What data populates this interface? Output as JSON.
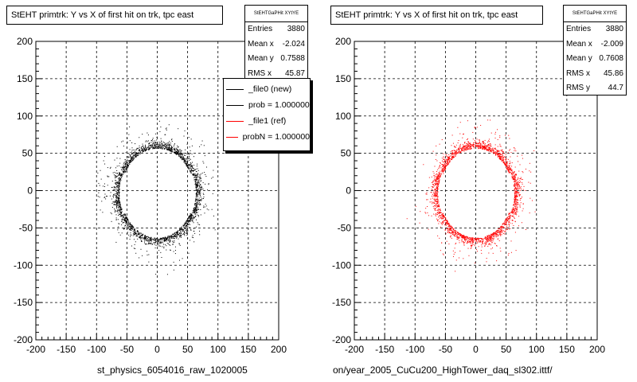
{
  "panels": [
    {
      "title": "StEHT primtrk: Y vs X of first hit on trk, tpc east",
      "stats": {
        "header": "StEHTGaPHit XYtYE",
        "rows": [
          {
            "label": "Entries",
            "value": "3880"
          },
          {
            "label": "Mean x",
            "value": "-2.024"
          },
          {
            "label": "Mean y",
            "value": "0.7588"
          },
          {
            "label": "RMS x",
            "value": "45.87"
          }
        ]
      },
      "legend": [
        {
          "label": "_file0 (new)",
          "color": "#000000"
        },
        {
          "label": "prob = 1.000000",
          "color": "#000000"
        },
        {
          "label": "_file1 (ref)",
          "color": "#ff0000"
        },
        {
          "label": "probN = 1.000000",
          "color": "#ff0000"
        }
      ],
      "file_label": "st_physics_6054016_raw_1020005",
      "marker_color": "#000000"
    },
    {
      "title": "StEHT primtrk: Y vs X of first hit on trk, tpc east",
      "stats": {
        "header": "StEHTGaPHit XYtYE",
        "rows": [
          {
            "label": "Entries",
            "value": "3880"
          },
          {
            "label": "Mean x",
            "value": "-2.009"
          },
          {
            "label": "Mean y",
            "value": "0.7608"
          },
          {
            "label": "RMS x",
            "value": "45.86"
          },
          {
            "label": "RMS y",
            "value": "44.7"
          }
        ]
      },
      "file_label": "on/year_2005_CuCu200_HighTower_daq_sl302.ittf/",
      "marker_color": "#ff0000"
    }
  ],
  "chart_data": [
    {
      "type": "scatter",
      "title": "StEHT primtrk: Y vs X of first hit on trk, tpc east",
      "xlim": [
        -200,
        200
      ],
      "ylim": [
        -200,
        200
      ],
      "xticks": [
        -200,
        -150,
        -100,
        -50,
        0,
        50,
        100,
        150,
        200
      ],
      "yticks": [
        -200,
        -150,
        -100,
        -50,
        0,
        50,
        100,
        150,
        200
      ],
      "grid": true,
      "legend_placement": "top-right",
      "series": [
        {
          "name": "_file0 (new)",
          "color": "#000000",
          "distribution": {
            "shape": "ring",
            "center_x": 0,
            "center_y": -3,
            "radius_x": 60,
            "radius_y": 60,
            "entries": 3880
          }
        }
      ]
    },
    {
      "type": "scatter",
      "title": "StEHT primtrk: Y vs X of first hit on trk, tpc east",
      "xlim": [
        -200,
        200
      ],
      "ylim": [
        -200,
        200
      ],
      "xticks": [
        -200,
        -150,
        -100,
        -50,
        0,
        50,
        100,
        150,
        200
      ],
      "yticks": [
        -200,
        -150,
        -100,
        -50,
        0,
        50,
        100,
        150,
        200
      ],
      "grid": true,
      "series": [
        {
          "name": "_file1 (ref)",
          "color": "#ff0000",
          "distribution": {
            "shape": "ring",
            "center_x": 0,
            "center_y": -3,
            "radius_x": 60,
            "radius_y": 60,
            "entries": 3880
          }
        }
      ]
    }
  ]
}
